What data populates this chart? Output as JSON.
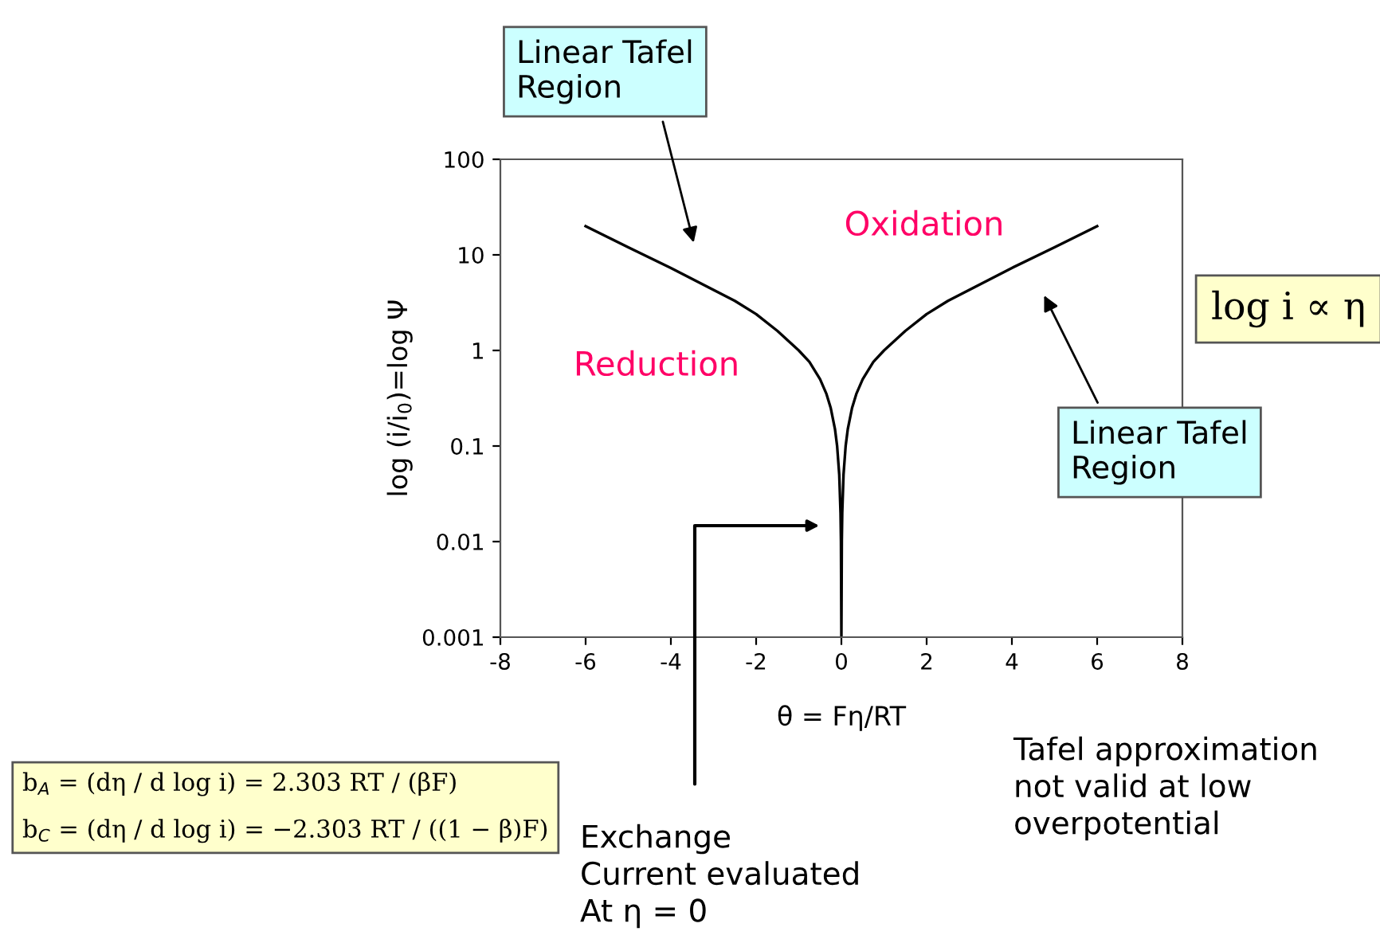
{
  "chart_data": {
    "type": "line",
    "xlabel": "θ = Fη/RT",
    "ylabel": "log (i/i$_{0}$)=log Ψ",
    "x": [
      -6,
      -5,
      -4,
      -3,
      -2.5,
      -2,
      -1.5,
      -1,
      -0.75,
      -0.5,
      -0.35,
      -0.25,
      -0.15,
      -0.1,
      -0.05,
      -0.02,
      -0.01,
      0,
      0.01,
      0.02,
      0.05,
      0.1,
      0.15,
      0.25,
      0.35,
      0.5,
      0.75,
      1,
      1.5,
      2,
      2.5,
      3,
      4,
      5,
      6
    ],
    "series": [
      {
        "color": "#000000",
        "values": [
          20,
          12,
          7.3,
          4.3,
          3.3,
          2.4,
          1.6,
          1.0,
          0.76,
          0.5,
          0.35,
          0.25,
          0.15,
          0.1,
          0.05,
          0.02,
          0.01,
          0.001,
          0.01,
          0.02,
          0.05,
          0.1,
          0.15,
          0.25,
          0.35,
          0.5,
          0.76,
          1.0,
          1.6,
          2.4,
          3.3,
          4.3,
          7.3,
          12,
          20
        ]
      }
    ],
    "log": "y",
    "xlim": [
      -8,
      8
    ],
    "ylim": [
      0.001,
      100
    ],
    "xticks": [
      -8,
      -6,
      -4,
      -2,
      0,
      2,
      4,
      6,
      8
    ],
    "yticks": [
      0.001,
      0.01,
      0.1,
      1,
      10,
      100
    ],
    "grid": false,
    "legend": false,
    "marker": "none",
    "line_style": "solid",
    "annotations": [
      "Linear Tafel\nRegion",
      "Linear Tafel\nRegion",
      "Oxidation",
      "Reduction",
      "Exchange\nCurrent evaluated\nAt η = 0",
      "Tafel approximation\nnot valid at low\noverpotential",
      "log i ∝ η",
      "b$_{A}$ = (dη / d log i) = 2.303 RT / (βF)\nb$_{C}$ = (dη / d log i) = −2.303 RT / ((1 − β)F)"
    ]
  }
}
